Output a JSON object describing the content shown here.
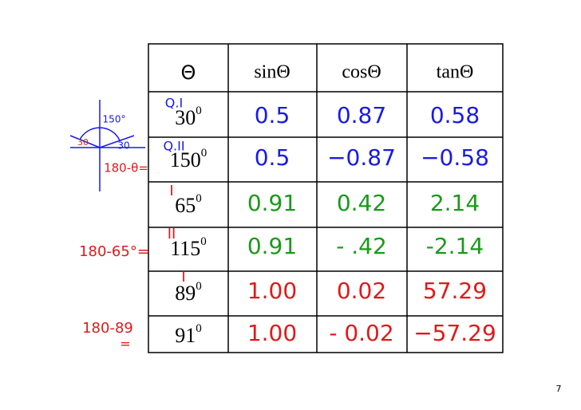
{
  "table": {
    "header": [
      "Θ",
      "sinΘ",
      "cosΘ",
      "tanΘ"
    ],
    "rows": [
      {
        "angle": "30",
        "sup": "0",
        "sin": "0.5",
        "cos": "0.87",
        "tan": "0.58",
        "color": "#1a1ae6"
      },
      {
        "angle": "150",
        "sup": "0",
        "sin": "0.5",
        "cos": "−0.87",
        "tan": "−0.58",
        "color": "#1a1ae6"
      },
      {
        "angle": "65",
        "sup": "0",
        "sin": "0.91",
        "cos": "0.42",
        "tan": "2.14",
        "color": "#1a9a1a"
      },
      {
        "angle": "115",
        "sup": "0",
        "sin": "0.91",
        "cos": "- .42",
        "tan": "-2.14",
        "color": "#1a9a1a"
      },
      {
        "angle": "89",
        "sup": "0",
        "sin": "1.00",
        "cos": "0.02",
        "tan": "57.29",
        "color": "#e01a1a"
      },
      {
        "angle": "91",
        "sup": "0",
        "sin": "1.00",
        "cos": "- 0.02",
        "tan": "−57.29",
        "color": "#e01a1a"
      }
    ]
  },
  "annotations": [
    "Q.I",
    "Q.II",
    "I",
    "II",
    "I",
    "180-θ=",
    "180-65°=",
    "180-89",
    "=",
    "150°",
    "30",
    "30"
  ],
  "page_number": "7"
}
